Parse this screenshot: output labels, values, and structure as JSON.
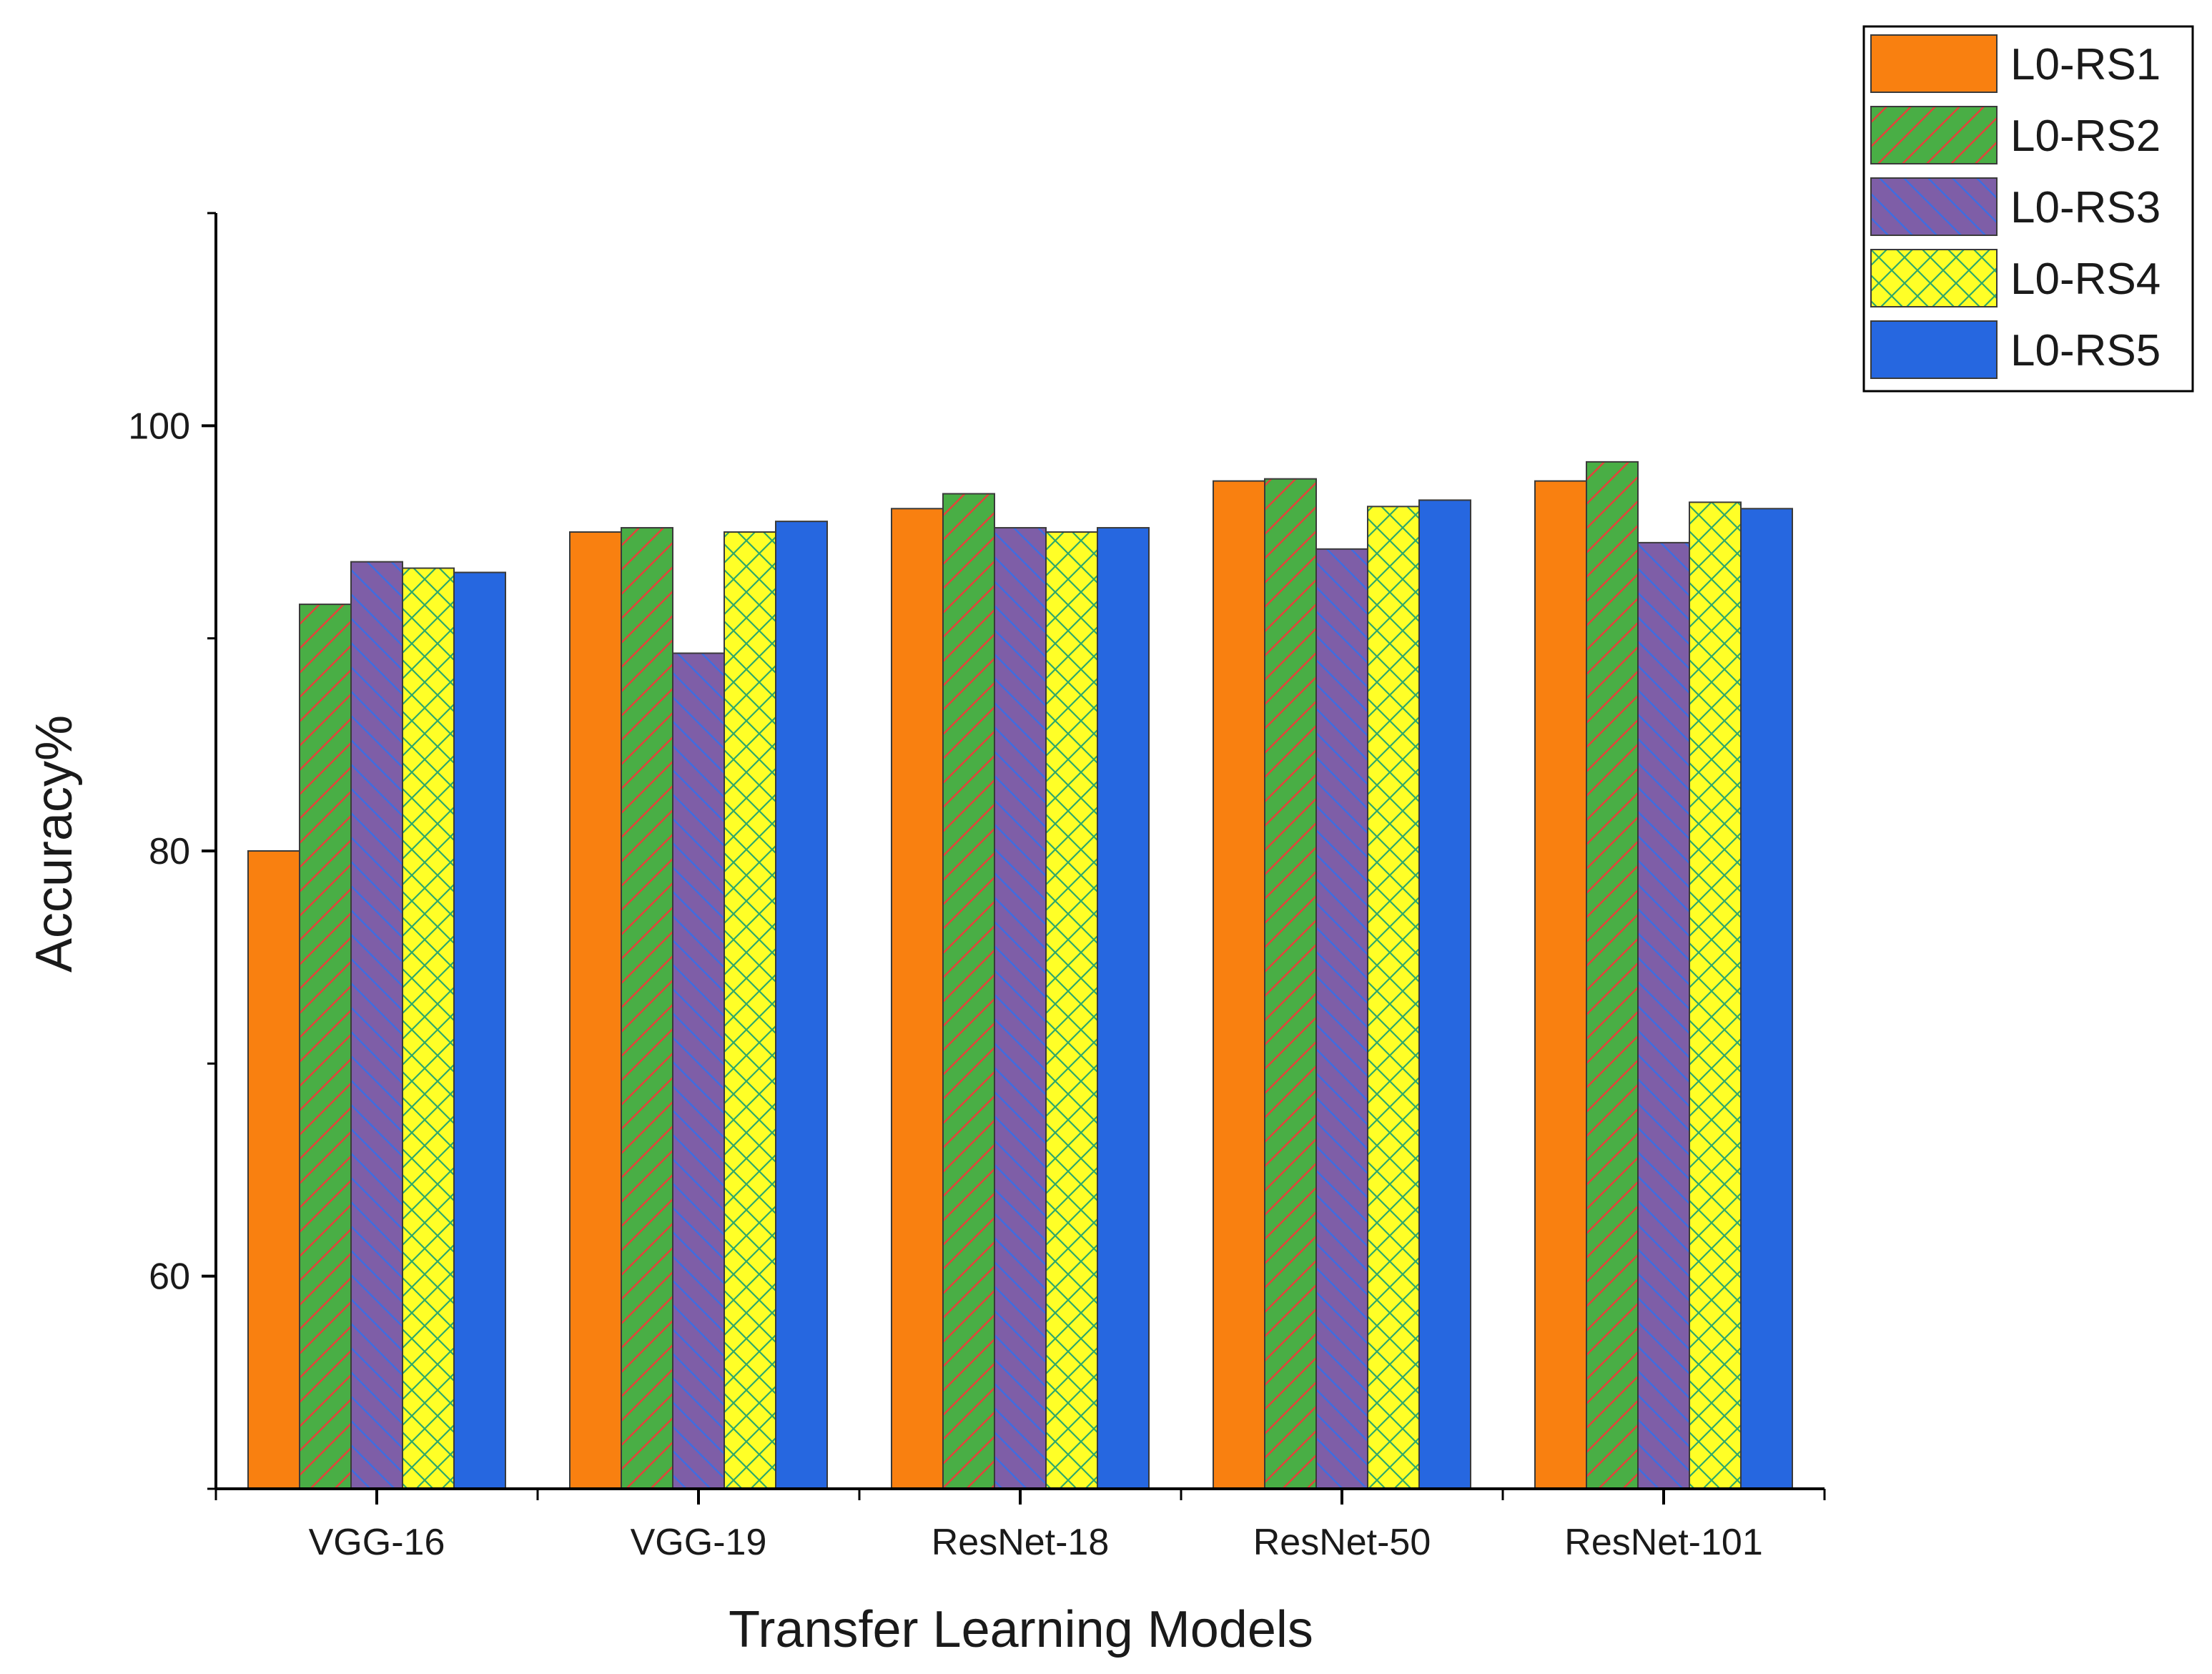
{
  "chart_data": {
    "type": "bar",
    "title": "",
    "xlabel": "Transfer Learning Models",
    "ylabel": "Accuracy%",
    "ylim": [
      50,
      110
    ],
    "yticks": [
      60,
      80,
      100
    ],
    "yticks_labeled": [
      "60",
      "80",
      "100"
    ],
    "minor_ticks": [
      50,
      70,
      90,
      110
    ],
    "grid": false,
    "legend_position": "top-right outside",
    "categories": [
      "VGG-16",
      "VGG-19",
      "ResNet-18",
      "ResNet-50",
      "ResNet-101"
    ],
    "series": [
      {
        "name": "L0-RS1",
        "color": "#f98010",
        "pattern": "none",
        "values": [
          80.0,
          95.0,
          96.1,
          97.4,
          97.4
        ]
      },
      {
        "name": "L0-RS2",
        "color": "#49ae45",
        "pattern": "hatch-red",
        "values": [
          91.6,
          95.2,
          96.8,
          97.5,
          98.3
        ]
      },
      {
        "name": "L0-RS3",
        "color": "#7e5ea7",
        "pattern": "hatch-blue",
        "values": [
          93.6,
          89.3,
          95.2,
          94.2,
          94.5
        ]
      },
      {
        "name": "L0-RS4",
        "color": "#ffff27",
        "pattern": "cross",
        "values": [
          93.3,
          95.0,
          95.0,
          96.2,
          96.4
        ]
      },
      {
        "name": "L0-RS5",
        "color": "#2667e0",
        "pattern": "none",
        "values": [
          93.1,
          95.5,
          95.2,
          96.5,
          96.1
        ]
      }
    ]
  }
}
